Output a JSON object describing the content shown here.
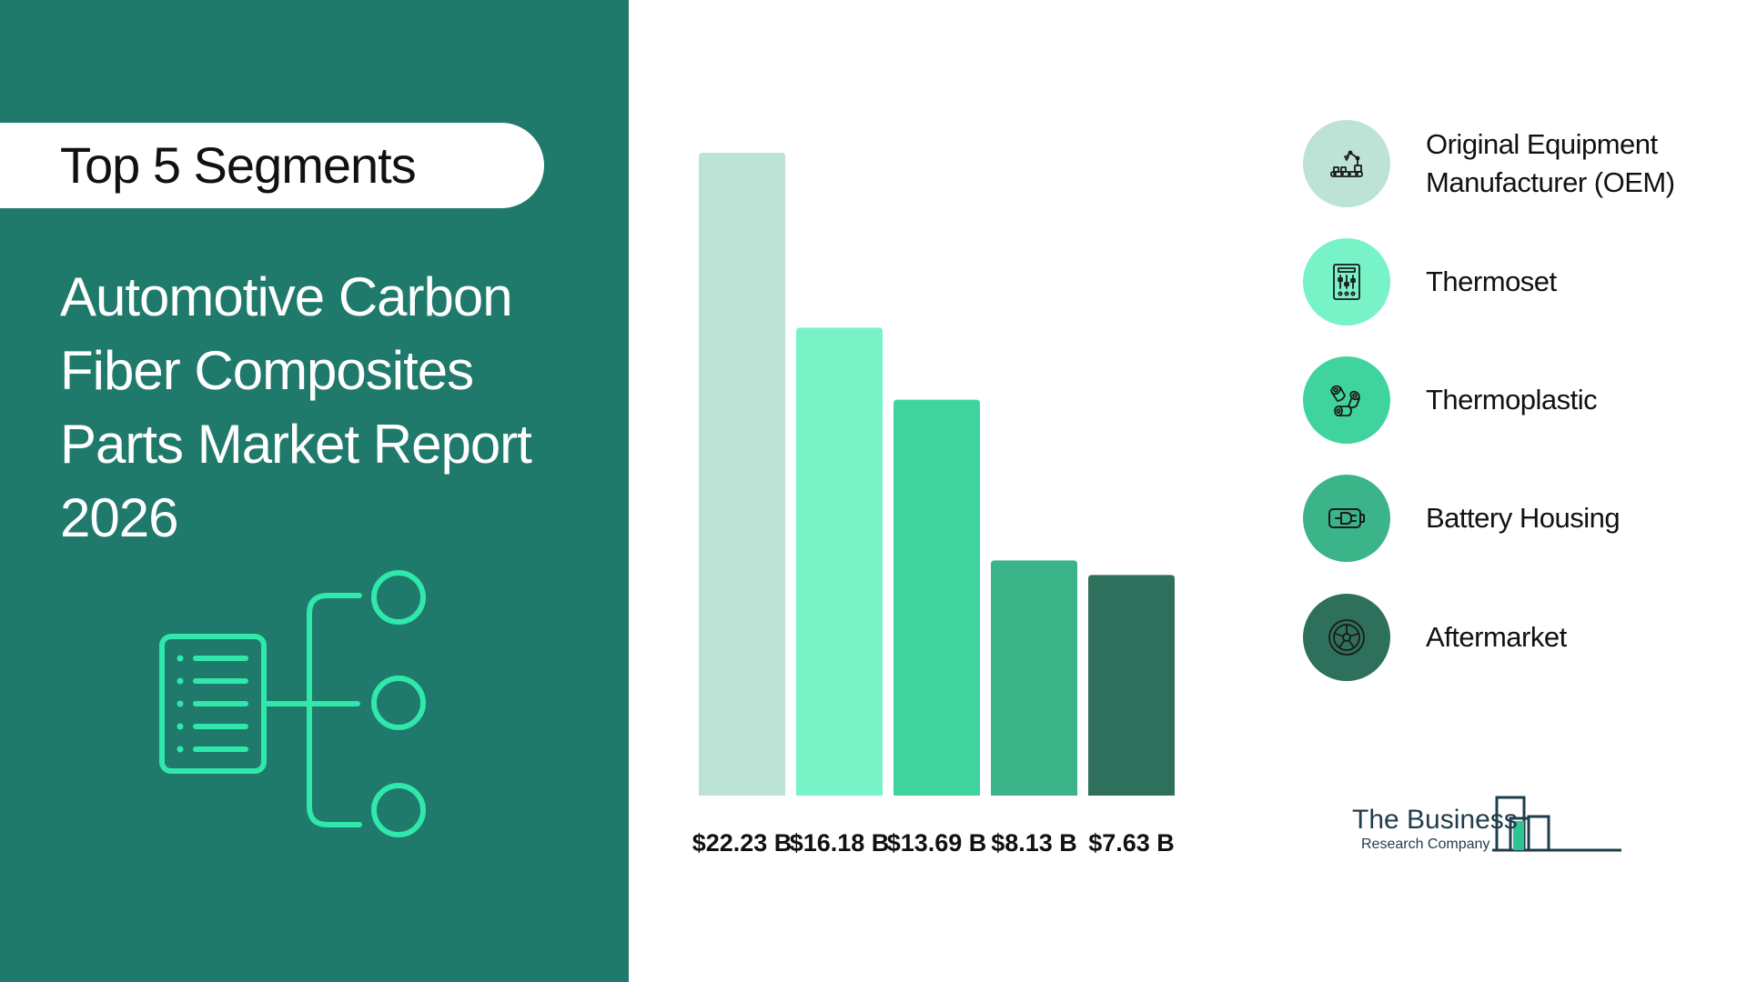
{
  "header": {
    "badge": "Top 5 Segments",
    "report_title": "Automotive Carbon Fiber Composites Parts Market Report 2026"
  },
  "chart_data": {
    "type": "bar",
    "categories": [
      "Original Equipment Manufacturer (OEM)",
      "Thermoset",
      "Thermoplastic",
      "Battery Housing",
      "Aftermarket"
    ],
    "values": [
      22.23,
      16.18,
      13.69,
      8.13,
      7.63
    ],
    "value_labels": [
      "$22.23 B",
      "$16.18 B",
      "$13.69 B",
      "$8.13 B",
      "$7.63 B"
    ],
    "colors": [
      "#bce3d5",
      "#78f2c7",
      "#3fd49e",
      "#3bb48a",
      "#2e705c"
    ],
    "title": "",
    "xlabel": "",
    "ylabel": "",
    "ylim": [
      0,
      22.23
    ],
    "legend_position": "right",
    "grid": false
  },
  "legend": [
    {
      "label": "Original Equipment Manufacturer (OEM)",
      "icon": "robotic-arm-icon",
      "color": "#bce3d5"
    },
    {
      "label": "Thermoset",
      "icon": "control-panel-icon",
      "color": "#78f2c7"
    },
    {
      "label": "Thermoplastic",
      "icon": "cylinders-icon",
      "color": "#3fd49e"
    },
    {
      "label": "Battery Housing",
      "icon": "battery-icon",
      "color": "#3bb48a"
    },
    {
      "label": "Aftermarket",
      "icon": "wheel-icon",
      "color": "#2e705c"
    }
  ],
  "logo": {
    "line1": "The Business",
    "line2": "Research Company"
  },
  "colors": {
    "panel": "#207a6b",
    "accent": "#2fe8aa",
    "logo": "#1f3d4a"
  }
}
